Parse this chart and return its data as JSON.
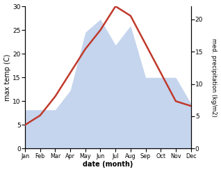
{
  "months": [
    "Jan",
    "Feb",
    "Mar",
    "Apr",
    "May",
    "Jun",
    "Jul",
    "Aug",
    "Sep",
    "Oct",
    "Nov",
    "Dec"
  ],
  "month_indices": [
    0,
    1,
    2,
    3,
    4,
    5,
    6,
    7,
    8,
    9,
    10,
    11
  ],
  "temperature": [
    5,
    7,
    11,
    16,
    21,
    25,
    30,
    28,
    22,
    16,
    10,
    9
  ],
  "precipitation": [
    6,
    6,
    6,
    9,
    18,
    20,
    16,
    19,
    11,
    11,
    11,
    7
  ],
  "temp_color": "#c0392b",
  "precip_color": "#c5d5ee",
  "ylim_left": [
    0,
    30
  ],
  "ylim_right": [
    0,
    22
  ],
  "ylabel_left": "max temp (C)",
  "ylabel_right": "med. precipitation (kg/m2)",
  "xlabel": "date (month)",
  "background_color": "#ffffff",
  "fig_width": 3.18,
  "fig_height": 2.47,
  "dpi": 100
}
